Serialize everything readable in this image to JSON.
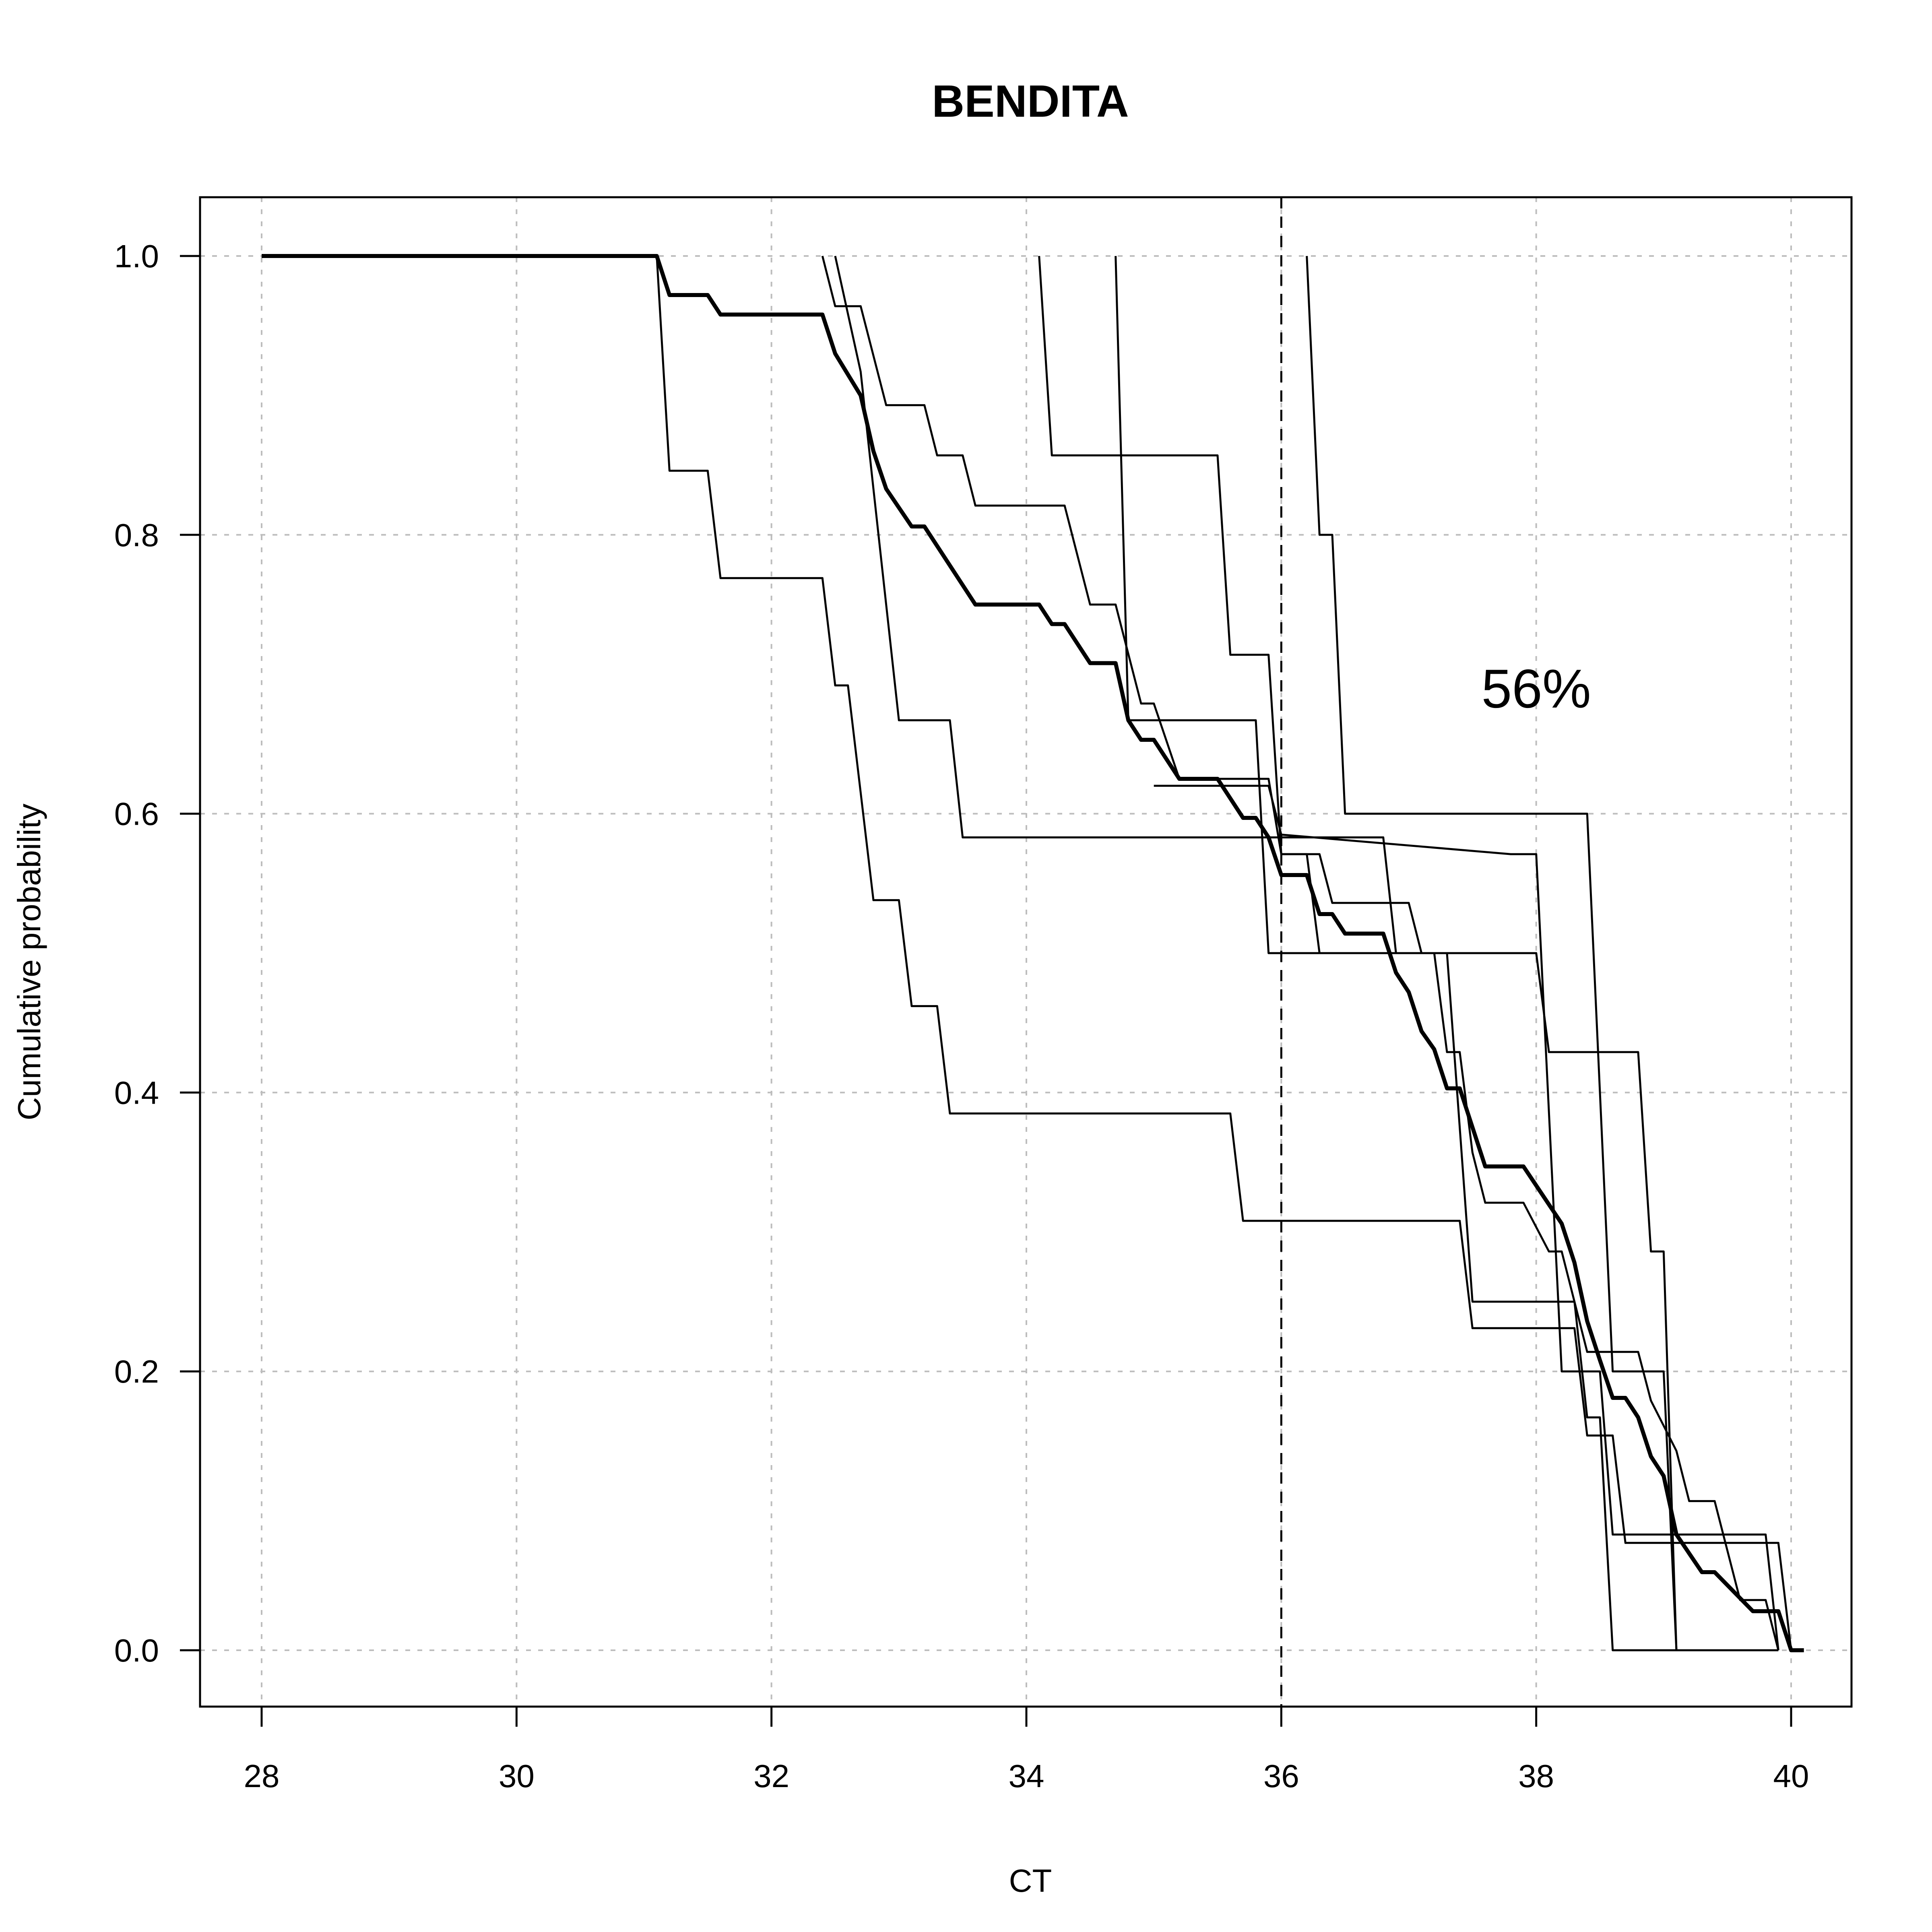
{
  "chart_data": {
    "type": "line",
    "title": "BENDITA",
    "xlabel": "CT",
    "ylabel": "Cumulative probability",
    "xlim": [
      27.5,
      40.5
    ],
    "ylim": [
      -0.04,
      1.04
    ],
    "x_ticks": [
      "28",
      "30",
      "32",
      "34",
      "36",
      "38",
      "40"
    ],
    "y_ticks": [
      "0.0",
      "0.2",
      "0.4",
      "0.6",
      "0.8",
      "1.0"
    ],
    "grid": true,
    "reference_line_x": 36,
    "annotation": {
      "text": "56%",
      "x": 38.0,
      "y": 0.69
    },
    "series": [
      {
        "style": "bold",
        "points": [
          [
            28,
            1
          ],
          [
            31.1,
            1
          ],
          [
            31.2,
            0.972
          ],
          [
            31.5,
            0.972
          ],
          [
            31.6,
            0.958
          ],
          [
            32.4,
            0.958
          ],
          [
            32.5,
            0.93
          ],
          [
            32.7,
            0.9
          ],
          [
            32.8,
            0.86
          ],
          [
            32.9,
            0.833
          ],
          [
            33.1,
            0.806
          ],
          [
            33.2,
            0.806
          ],
          [
            33.6,
            0.75
          ],
          [
            34.1,
            0.75
          ],
          [
            34.2,
            0.736
          ],
          [
            34.3,
            0.736
          ],
          [
            34.5,
            0.708
          ],
          [
            34.7,
            0.708
          ],
          [
            34.8,
            0.667
          ],
          [
            34.9,
            0.653
          ],
          [
            35.0,
            0.653
          ],
          [
            35.2,
            0.625
          ],
          [
            35.5,
            0.625
          ],
          [
            35.7,
            0.597
          ],
          [
            35.8,
            0.597
          ],
          [
            35.9,
            0.583
          ],
          [
            36.0,
            0.556
          ],
          [
            36.2,
            0.556
          ],
          [
            36.3,
            0.528
          ],
          [
            36.4,
            0.528
          ],
          [
            36.5,
            0.514
          ],
          [
            36.8,
            0.514
          ],
          [
            36.9,
            0.486
          ],
          [
            37.0,
            0.472
          ],
          [
            37.1,
            0.444
          ],
          [
            37.2,
            0.431
          ],
          [
            37.3,
            0.403
          ],
          [
            37.4,
            0.403
          ],
          [
            37.6,
            0.347
          ],
          [
            37.9,
            0.347
          ],
          [
            38.2,
            0.306
          ],
          [
            38.3,
            0.278
          ],
          [
            38.4,
            0.236
          ],
          [
            38.5,
            0.208
          ],
          [
            38.6,
            0.181
          ],
          [
            38.7,
            0.181
          ],
          [
            38.8,
            0.167
          ],
          [
            38.9,
            0.139
          ],
          [
            39.0,
            0.125
          ],
          [
            39.1,
            0.083
          ],
          [
            39.3,
            0.056
          ],
          [
            39.4,
            0.056
          ],
          [
            39.7,
            0.028
          ],
          [
            39.9,
            0.028
          ],
          [
            40.0,
            0
          ],
          [
            40.1,
            0
          ]
        ]
      },
      {
        "style": "thin",
        "points": [
          [
            31.1,
            1
          ],
          [
            31.2,
            0.846
          ],
          [
            31.5,
            0.846
          ],
          [
            31.6,
            0.769
          ],
          [
            32.4,
            0.769
          ],
          [
            32.5,
            0.692
          ],
          [
            32.6,
            0.692
          ],
          [
            32.8,
            0.538
          ],
          [
            33.0,
            0.538
          ],
          [
            33.1,
            0.462
          ],
          [
            33.3,
            0.462
          ],
          [
            33.4,
            0.385
          ],
          [
            35.6,
            0.385
          ],
          [
            35.7,
            0.308
          ],
          [
            37.4,
            0.308
          ],
          [
            37.5,
            0.231
          ],
          [
            38.3,
            0.231
          ],
          [
            38.4,
            0.154
          ],
          [
            38.6,
            0.154
          ],
          [
            38.7,
            0.077
          ],
          [
            39.9,
            0.077
          ],
          [
            40.0,
            0
          ]
        ]
      },
      {
        "style": "thin",
        "points": [
          [
            32.4,
            1
          ],
          [
            32.5,
            0.964
          ],
          [
            32.7,
            0.964
          ],
          [
            32.9,
            0.893
          ],
          [
            33.2,
            0.893
          ],
          [
            33.3,
            0.857
          ],
          [
            33.5,
            0.857
          ],
          [
            33.6,
            0.821
          ],
          [
            34.3,
            0.821
          ],
          [
            34.5,
            0.75
          ],
          [
            34.7,
            0.75
          ],
          [
            34.9,
            0.679
          ],
          [
            35.0,
            0.679
          ],
          [
            35.2,
            0.625
          ],
          [
            35.9,
            0.625
          ],
          [
            36.0,
            0.571
          ],
          [
            36.3,
            0.571
          ],
          [
            36.4,
            0.536
          ],
          [
            37.0,
            0.536
          ],
          [
            37.1,
            0.5
          ],
          [
            37.2,
            0.5
          ],
          [
            37.3,
            0.429
          ],
          [
            37.4,
            0.429
          ],
          [
            37.5,
            0.357
          ],
          [
            37.6,
            0.321
          ],
          [
            37.9,
            0.321
          ],
          [
            38.1,
            0.286
          ],
          [
            38.2,
            0.286
          ],
          [
            38.3,
            0.25
          ],
          [
            38.4,
            0.214
          ],
          [
            38.8,
            0.214
          ],
          [
            38.9,
            0.179
          ],
          [
            39.1,
            0.143
          ],
          [
            39.2,
            0.107
          ],
          [
            39.4,
            0.107
          ],
          [
            39.6,
            0.036
          ],
          [
            39.8,
            0.036
          ],
          [
            39.9,
            0
          ]
        ]
      },
      {
        "style": "thin",
        "points": [
          [
            32.5,
            1
          ],
          [
            32.7,
            0.917
          ],
          [
            32.8,
            0.833
          ],
          [
            33.0,
            0.667
          ],
          [
            33.4,
            0.667
          ],
          [
            33.5,
            0.583
          ],
          [
            36.8,
            0.583
          ],
          [
            36.9,
            0.5
          ],
          [
            37.3,
            0.5
          ],
          [
            37.5,
            0.25
          ],
          [
            38.3,
            0.25
          ],
          [
            38.4,
            0.167
          ],
          [
            38.5,
            0.167
          ],
          [
            38.6,
            0.0
          ],
          [
            39.9,
            0.0
          ]
        ]
      },
      {
        "style": "thin",
        "points": [
          [
            34.1,
            1
          ],
          [
            34.2,
            0.857
          ],
          [
            35.5,
            0.857
          ],
          [
            35.6,
            0.714
          ],
          [
            35.9,
            0.714
          ],
          [
            36.0,
            0.571
          ],
          [
            36.2,
            0.571
          ],
          [
            36.3,
            0.5
          ],
          [
            38.0,
            0.5
          ],
          [
            38.1,
            0.429
          ],
          [
            38.8,
            0.429
          ],
          [
            38.9,
            0.286
          ],
          [
            39.0,
            0.286
          ],
          [
            39.1,
            0.0
          ],
          [
            39.3,
            0.0
          ]
        ]
      },
      {
        "style": "thin",
        "points": [
          [
            34.7,
            1
          ],
          [
            34.8,
            0.667
          ],
          [
            35.8,
            0.667
          ],
          [
            35.9,
            0.5
          ],
          [
            36.6,
            0.5
          ]
        ]
      },
      {
        "style": "thin",
        "points": [
          [
            36.2,
            1
          ],
          [
            36.3,
            0.8
          ],
          [
            36.4,
            0.8
          ],
          [
            36.5,
            0.6
          ],
          [
            38.4,
            0.6
          ],
          [
            38.6,
            0.2
          ],
          [
            39.0,
            0.2
          ],
          [
            39.1,
            0.0
          ],
          [
            39.7,
            0.0
          ]
        ]
      },
      {
        "style": "thin",
        "points": [
          [
            35.0,
            0.62
          ],
          [
            35.9,
            0.62
          ],
          [
            36.0,
            0.585
          ],
          [
            37.8,
            0.571
          ],
          [
            37.9,
            0.571
          ],
          [
            38.0,
            0.571
          ],
          [
            38.2,
            0.2
          ],
          [
            38.5,
            0.2
          ],
          [
            38.6,
            0.083
          ],
          [
            39.8,
            0.083
          ],
          [
            39.9,
            0
          ]
        ]
      }
    ]
  }
}
